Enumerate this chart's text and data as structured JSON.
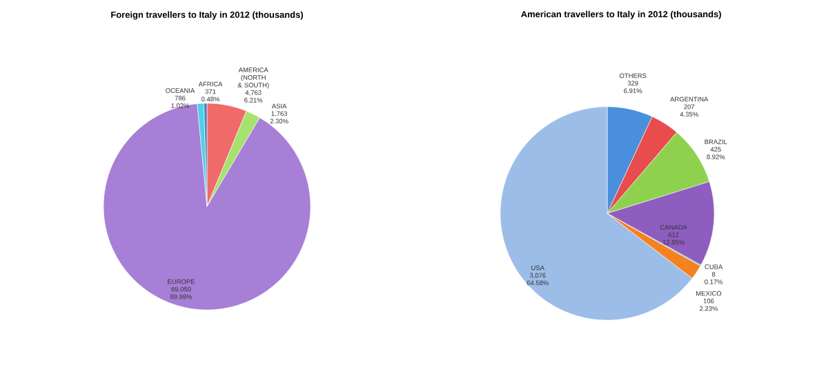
{
  "chart_data": [
    {
      "type": "pie",
      "title": "Foreign travellers to Italy in 2012 (thousands)",
      "categories": [
        "AMERICA (NORTH & SOUTH)",
        "ASIA",
        "EUROPE",
        "OCEANIA",
        "AFRICA"
      ],
      "values": [
        4763,
        1763,
        69050,
        786,
        371
      ],
      "value_labels": [
        "4,763",
        "1,763",
        "69,050",
        "786",
        "371"
      ],
      "annotations": [
        "6.21%",
        "2.30%",
        "89.99%",
        "1.02%",
        "0.48%"
      ],
      "colors": [
        "#f06a6a",
        "#a6e36e",
        "#a77fd6",
        "#4fd0ea",
        "#4f81bd"
      ]
    },
    {
      "type": "pie",
      "title": "American travellers to Italy in 2012 (thousands)",
      "categories": [
        "OTHERS",
        "ARGENTINA",
        "BRAZIL",
        "CANADA",
        "CUBA",
        "MEXICO",
        "USA"
      ],
      "values": [
        329,
        207,
        425,
        612,
        8,
        106,
        3076
      ],
      "value_labels": [
        "329",
        "207",
        "425",
        "612",
        "8",
        "106",
        "3,076"
      ],
      "annotations": [
        "6.91%",
        "4.35%",
        "8.92%",
        "12.85%",
        "0.17%",
        "2.23%",
        "64.58%"
      ],
      "colors": [
        "#4a8fdc",
        "#e84c4c",
        "#8fd14f",
        "#8e5dc0",
        "#3cbcc8",
        "#f58220",
        "#9dbde9"
      ]
    }
  ]
}
